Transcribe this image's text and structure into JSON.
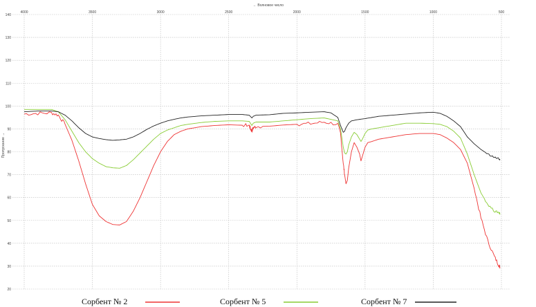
{
  "chart_data": {
    "type": "line",
    "title": "",
    "xlabel": "← Волновое число",
    "ylabel": "Пропускание →",
    "xlim": [
      4000,
      500
    ],
    "ylim": [
      20,
      140
    ],
    "x_reversed": true,
    "x_ticks": [
      4000,
      3500,
      3000,
      2500,
      2000,
      1500,
      1000,
      500
    ],
    "y_ticks": [
      20,
      30,
      40,
      50,
      60,
      70,
      80,
      90,
      100,
      110,
      120,
      130,
      140
    ],
    "grid": true,
    "legend_position": "bottom",
    "series": [
      {
        "name": "Сорбент № 2",
        "color": "#ee3333",
        "points": [
          [
            4000,
            96.5
          ],
          [
            3900,
            96.8
          ],
          [
            3800,
            97.0
          ],
          [
            3750,
            96.0
          ],
          [
            3700,
            92.0
          ],
          [
            3650,
            85.0
          ],
          [
            3600,
            76.0
          ],
          [
            3550,
            66.0
          ],
          [
            3500,
            57.0
          ],
          [
            3450,
            52.0
          ],
          [
            3400,
            49.5
          ],
          [
            3350,
            48.2
          ],
          [
            3300,
            48.0
          ],
          [
            3250,
            49.5
          ],
          [
            3200,
            54.0
          ],
          [
            3150,
            60.0
          ],
          [
            3100,
            67.0
          ],
          [
            3050,
            74.0
          ],
          [
            3000,
            80.0
          ],
          [
            2950,
            84.5
          ],
          [
            2900,
            87.5
          ],
          [
            2850,
            89.0
          ],
          [
            2800,
            90.0
          ],
          [
            2700,
            91.0
          ],
          [
            2600,
            91.5
          ],
          [
            2500,
            91.8
          ],
          [
            2400,
            91.6
          ],
          [
            2350,
            91.6
          ],
          [
            2340,
            90.0
          ],
          [
            2330,
            89.0
          ],
          [
            2320,
            90.5
          ],
          [
            2300,
            91.0
          ],
          [
            2200,
            91.2
          ],
          [
            2100,
            91.7
          ],
          [
            2000,
            92.0
          ],
          [
            1900,
            92.3
          ],
          [
            1800,
            93.0
          ],
          [
            1700,
            92.0
          ],
          [
            1680,
            88.0
          ],
          [
            1660,
            75.0
          ],
          [
            1650,
            70.0
          ],
          [
            1640,
            66.0
          ],
          [
            1630,
            67.5
          ],
          [
            1620,
            73.0
          ],
          [
            1600,
            80.0
          ],
          [
            1580,
            84.0
          ],
          [
            1560,
            82.0
          ],
          [
            1540,
            79.0
          ],
          [
            1530,
            76.0
          ],
          [
            1520,
            78.0
          ],
          [
            1500,
            82.0
          ],
          [
            1480,
            84.0
          ],
          [
            1450,
            84.5
          ],
          [
            1400,
            85.5
          ],
          [
            1300,
            86.5
          ],
          [
            1200,
            87.5
          ],
          [
            1100,
            88.0
          ],
          [
            1000,
            88.0
          ],
          [
            950,
            87.5
          ],
          [
            900,
            86.0
          ],
          [
            850,
            84.0
          ],
          [
            800,
            81.0
          ],
          [
            750,
            75.0
          ],
          [
            700,
            64.0
          ],
          [
            650,
            51.0
          ],
          [
            600,
            41.0
          ],
          [
            550,
            34.0
          ],
          [
            520,
            30.5
          ],
          [
            510,
            29.5
          ]
        ]
      },
      {
        "name": "Сорбент № 5",
        "color": "#88cc33",
        "points": [
          [
            4000,
            98.5
          ],
          [
            3900,
            98.5
          ],
          [
            3800,
            98.5
          ],
          [
            3750,
            97.5
          ],
          [
            3700,
            94.0
          ],
          [
            3650,
            89.0
          ],
          [
            3600,
            84.0
          ],
          [
            3550,
            80.0
          ],
          [
            3500,
            77.0
          ],
          [
            3450,
            75.0
          ],
          [
            3400,
            73.5
          ],
          [
            3350,
            73.0
          ],
          [
            3300,
            72.8
          ],
          [
            3250,
            74.0
          ],
          [
            3200,
            76.5
          ],
          [
            3150,
            79.5
          ],
          [
            3100,
            82.5
          ],
          [
            3050,
            85.5
          ],
          [
            3000,
            88.0
          ],
          [
            2950,
            89.5
          ],
          [
            2900,
            90.5
          ],
          [
            2850,
            91.5
          ],
          [
            2800,
            92.0
          ],
          [
            2700,
            92.8
          ],
          [
            2600,
            93.3
          ],
          [
            2500,
            93.5
          ],
          [
            2400,
            93.5
          ],
          [
            2350,
            93.3
          ],
          [
            2330,
            91.5
          ],
          [
            2320,
            92.5
          ],
          [
            2300,
            93.0
          ],
          [
            2200,
            93.0
          ],
          [
            2100,
            93.5
          ],
          [
            2000,
            94.0
          ],
          [
            1900,
            94.5
          ],
          [
            1800,
            94.8
          ],
          [
            1700,
            93.5
          ],
          [
            1680,
            90.0
          ],
          [
            1660,
            82.0
          ],
          [
            1650,
            79.5
          ],
          [
            1640,
            79.0
          ],
          [
            1630,
            80.0
          ],
          [
            1620,
            83.0
          ],
          [
            1600,
            86.5
          ],
          [
            1580,
            88.5
          ],
          [
            1560,
            87.5
          ],
          [
            1540,
            85.5
          ],
          [
            1530,
            84.5
          ],
          [
            1520,
            85.5
          ],
          [
            1500,
            88.0
          ],
          [
            1480,
            89.5
          ],
          [
            1450,
            90.0
          ],
          [
            1400,
            90.5
          ],
          [
            1300,
            91.5
          ],
          [
            1200,
            92.5
          ],
          [
            1100,
            92.5
          ],
          [
            1000,
            92.3
          ],
          [
            950,
            92.0
          ],
          [
            900,
            91.0
          ],
          [
            850,
            89.0
          ],
          [
            800,
            86.0
          ],
          [
            750,
            79.0
          ],
          [
            700,
            70.0
          ],
          [
            650,
            62.0
          ],
          [
            600,
            57.0
          ],
          [
            550,
            54.0
          ],
          [
            520,
            53.5
          ],
          [
            510,
            53.0
          ]
        ]
      },
      {
        "name": "Сорбент № 7",
        "color": "#222222",
        "points": [
          [
            4000,
            97.5
          ],
          [
            3900,
            97.8
          ],
          [
            3800,
            97.8
          ],
          [
            3750,
            97.5
          ],
          [
            3700,
            96.0
          ],
          [
            3650,
            93.5
          ],
          [
            3600,
            90.5
          ],
          [
            3550,
            88.0
          ],
          [
            3500,
            86.5
          ],
          [
            3450,
            85.8
          ],
          [
            3400,
            85.3
          ],
          [
            3350,
            85.0
          ],
          [
            3300,
            85.2
          ],
          [
            3250,
            85.5
          ],
          [
            3200,
            86.5
          ],
          [
            3150,
            88.0
          ],
          [
            3100,
            89.8
          ],
          [
            3050,
            91.3
          ],
          [
            3000,
            92.5
          ],
          [
            2950,
            93.5
          ],
          [
            2900,
            94.2
          ],
          [
            2850,
            94.8
          ],
          [
            2800,
            95.2
          ],
          [
            2700,
            95.7
          ],
          [
            2600,
            96.0
          ],
          [
            2500,
            96.3
          ],
          [
            2400,
            96.3
          ],
          [
            2350,
            96.0
          ],
          [
            2330,
            94.8
          ],
          [
            2320,
            95.5
          ],
          [
            2300,
            96.0
          ],
          [
            2200,
            96.2
          ],
          [
            2100,
            96.8
          ],
          [
            2000,
            97.0
          ],
          [
            1900,
            97.3
          ],
          [
            1800,
            97.5
          ],
          [
            1750,
            97.0
          ],
          [
            1700,
            95.0
          ],
          [
            1680,
            91.5
          ],
          [
            1660,
            88.5
          ],
          [
            1650,
            89.0
          ],
          [
            1640,
            90.5
          ],
          [
            1620,
            92.5
          ],
          [
            1600,
            93.5
          ],
          [
            1560,
            94.0
          ],
          [
            1500,
            94.5
          ],
          [
            1450,
            95.0
          ],
          [
            1400,
            95.5
          ],
          [
            1300,
            96.0
          ],
          [
            1200,
            96.5
          ],
          [
            1100,
            97.0
          ],
          [
            1000,
            97.3
          ],
          [
            950,
            96.8
          ],
          [
            900,
            95.5
          ],
          [
            850,
            93.5
          ],
          [
            800,
            91.0
          ],
          [
            750,
            86.5
          ],
          [
            700,
            83.5
          ],
          [
            650,
            81.0
          ],
          [
            600,
            79.0
          ],
          [
            550,
            77.5
          ],
          [
            520,
            77.0
          ],
          [
            510,
            76.5
          ]
        ]
      }
    ]
  }
}
